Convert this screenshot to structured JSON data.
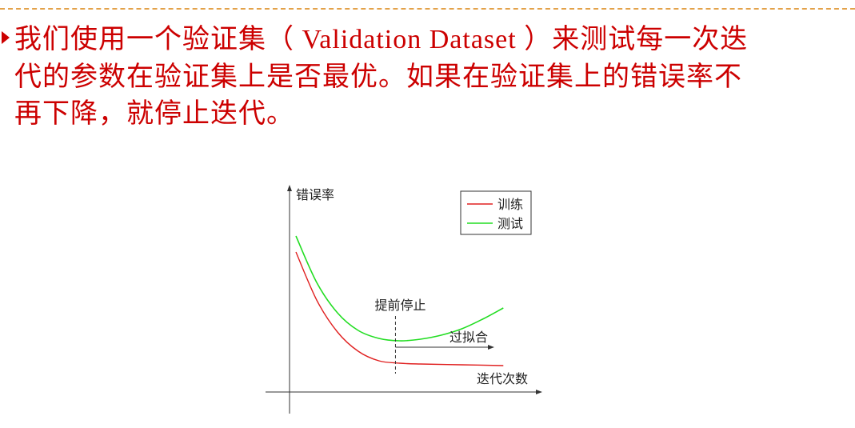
{
  "slide": {
    "bullet": {
      "line1_a": "我们使用一个验证集（",
      "line1_en": " Validation Dataset ",
      "line1_b": "）来测试每一次迭",
      "line2": "代的参数在验证集上是否最优。如果在验证集上的错误率不",
      "line3": "再下降，就停止迭代。"
    }
  },
  "chart_data": {
    "type": "line",
    "ylabel": "错误率",
    "xlabel": "迭代次数",
    "legend": {
      "placement": "top-right",
      "entries": [
        "训练",
        "测试"
      ]
    },
    "series": [
      {
        "name": "训练",
        "color": "#e02020",
        "points": [
          [
            0,
            0.85
          ],
          [
            0.5,
            0.55
          ],
          [
            1,
            0.35
          ],
          [
            1.5,
            0.23
          ],
          [
            2,
            0.17
          ],
          [
            2.5,
            0.155
          ],
          [
            3,
            0.15
          ],
          [
            4,
            0.145
          ],
          [
            5,
            0.14
          ]
        ]
      },
      {
        "name": "测试",
        "color": "#22dd22",
        "points": [
          [
            0,
            0.95
          ],
          [
            0.5,
            0.66
          ],
          [
            1,
            0.47
          ],
          [
            1.5,
            0.36
          ],
          [
            2,
            0.31
          ],
          [
            2.5,
            0.295
          ],
          [
            3,
            0.305
          ],
          [
            3.5,
            0.33
          ],
          [
            4,
            0.37
          ],
          [
            4.5,
            0.43
          ],
          [
            5,
            0.5
          ]
        ]
      }
    ],
    "annotations": {
      "early_stop_label": "提前停止",
      "overfit_label": "过拟合",
      "early_stop_x": 2.4
    },
    "xlim": [
      0,
      5.4
    ],
    "ylim": [
      0,
      1.1
    ],
    "grid": false
  }
}
